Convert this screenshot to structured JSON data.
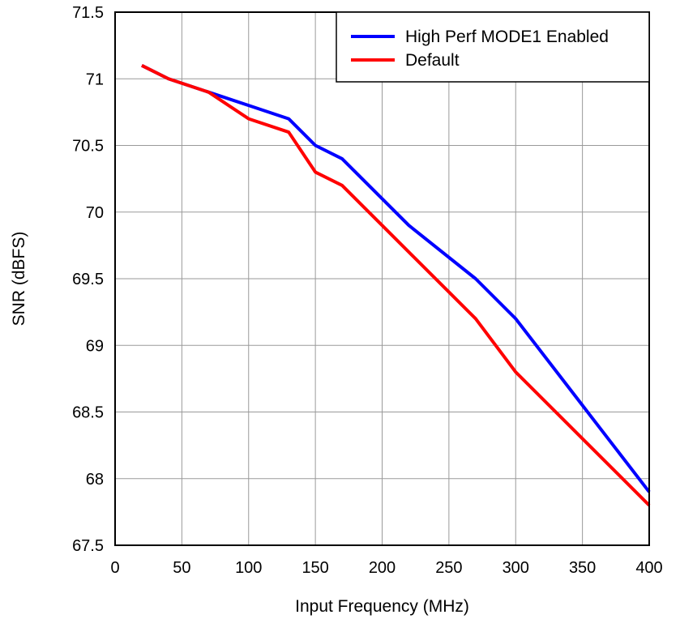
{
  "chart_data": {
    "type": "line",
    "title": "",
    "xlabel": "Input Frequency (MHz)",
    "ylabel": "SNR (dBFS)",
    "xlim": [
      0,
      400
    ],
    "ylim": [
      67.5,
      71.5
    ],
    "xticks": [
      0,
      50,
      100,
      150,
      200,
      250,
      300,
      350,
      400
    ],
    "xtick_labels": [
      "0",
      "50",
      "100",
      "150",
      "200",
      "250",
      "300",
      "350",
      "400"
    ],
    "yticks": [
      67.5,
      68,
      68.5,
      69,
      69.5,
      70,
      70.5,
      71,
      71.5
    ],
    "ytick_labels": [
      "67.5",
      "68",
      "68.5",
      "69",
      "69.5",
      "70",
      "70.5",
      "71",
      "71.5"
    ],
    "grid": true,
    "legend_position": "top-right",
    "series": [
      {
        "name": "High Perf MODE1 Enabled",
        "color": "#0000ff",
        "x": [
          20,
          40,
          70,
          100,
          130,
          150,
          170,
          220,
          270,
          300,
          350,
          400
        ],
        "y": [
          71.1,
          71.0,
          70.9,
          70.8,
          70.7,
          70.5,
          70.4,
          69.9,
          69.5,
          69.2,
          68.55,
          67.9
        ]
      },
      {
        "name": "Default",
        "color": "#ff0000",
        "x": [
          20,
          40,
          70,
          100,
          130,
          150,
          170,
          200,
          250,
          270,
          300,
          350,
          400
        ],
        "y": [
          71.1,
          71.0,
          70.9,
          70.7,
          70.6,
          70.3,
          70.2,
          69.9,
          69.4,
          69.2,
          68.8,
          68.3,
          67.8
        ]
      }
    ]
  }
}
